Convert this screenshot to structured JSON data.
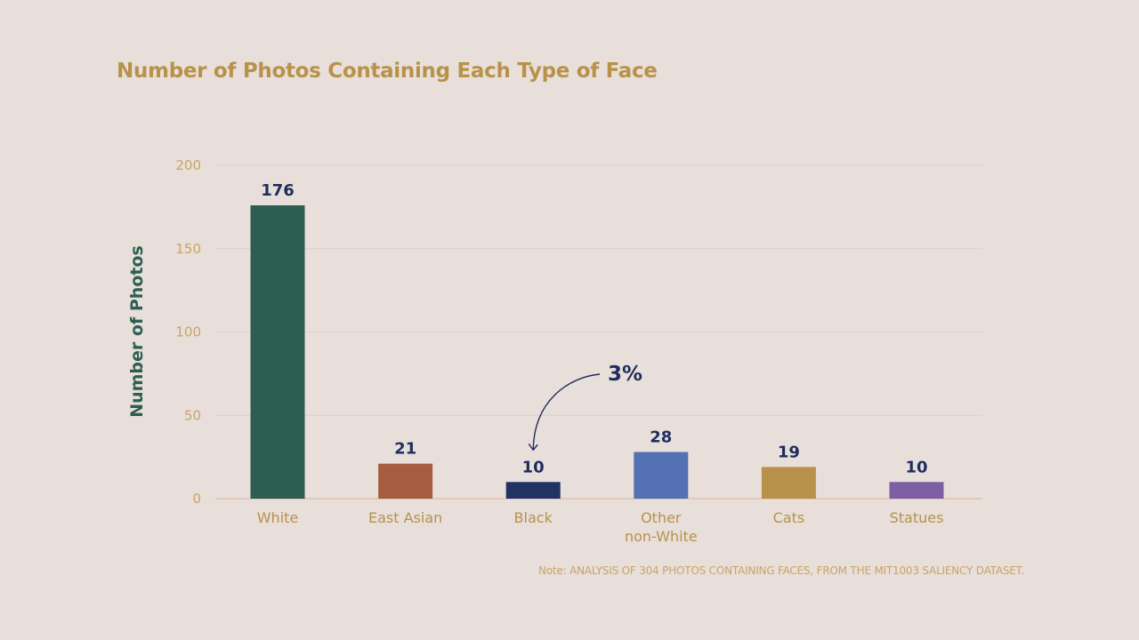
{
  "chart_data": {
    "type": "bar",
    "title": "Number of Photos Containing Each Type of Face",
    "xlabel": "",
    "ylabel": "Number of Photos",
    "ylim": [
      0,
      200
    ],
    "yticks": [
      0,
      50,
      100,
      150,
      200
    ],
    "grid": true,
    "categories": [
      [
        "White"
      ],
      [
        "East Asian"
      ],
      [
        "Black"
      ],
      [
        "Other",
        "non-White"
      ],
      [
        "Cats"
      ],
      [
        "Statues"
      ]
    ],
    "values": [
      176,
      21,
      10,
      28,
      19,
      10
    ],
    "colors": [
      "#2c5e52",
      "#a65d3f",
      "#223363",
      "#5472b3",
      "#b8914a",
      "#7e5fa3"
    ],
    "annotation": {
      "text": "3%",
      "target_category_index": 2
    },
    "note": "Note: ANALYSIS OF 304 PHOTOS CONTAINING FACES, FROM THE MIT1003 SALIENCY DATASET."
  }
}
